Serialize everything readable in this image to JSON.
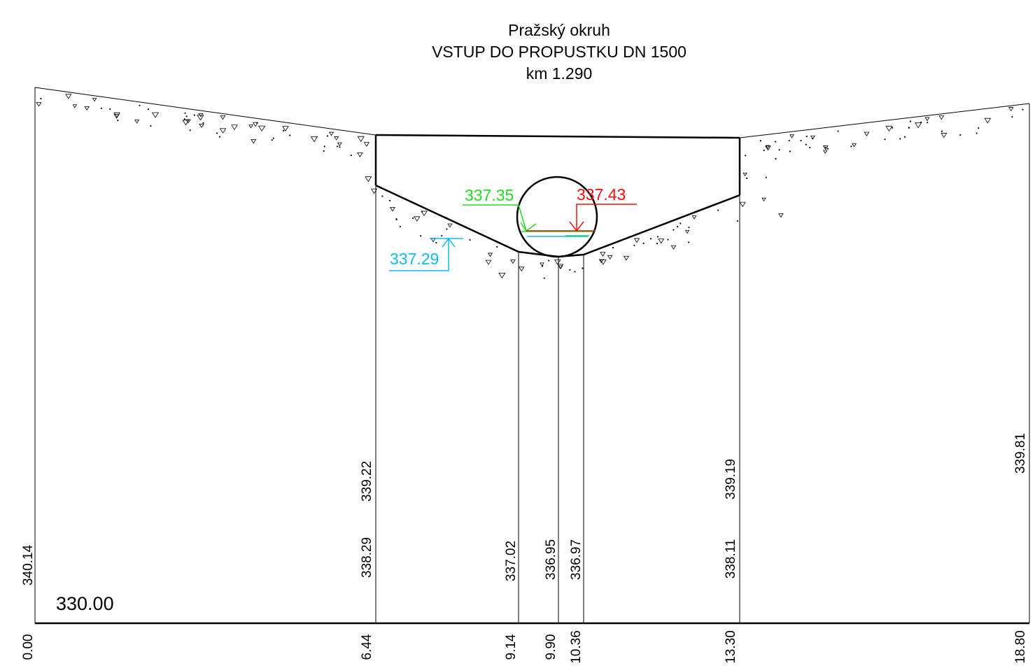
{
  "title": {
    "line1": "Pražský okruh",
    "line2": "VSTUP DO PROPUSTKU DN 1500",
    "line3": "km 1.290"
  },
  "datum_label": "330.00",
  "colors": {
    "line": "#000000",
    "green": "#22dd22",
    "red": "#ee1111",
    "blue": "#11bbee"
  },
  "water_levels": {
    "green": "337.35",
    "red": "337.43",
    "blue": "337.29"
  },
  "stations": [
    {
      "distance": "0.00",
      "elev_upper": "",
      "elev_lower": "340.14"
    },
    {
      "distance": "6.44",
      "elev_upper": "339.22",
      "elev_lower": "338.29"
    },
    {
      "distance": "9.14",
      "elev_upper": "",
      "elev_lower": "337.02"
    },
    {
      "distance": "9.90",
      "elev_upper": "",
      "elev_lower": "336.95"
    },
    {
      "distance": "10.36",
      "elev_upper": "",
      "elev_lower": "336.97"
    },
    {
      "distance": "13.30",
      "elev_upper": "339.19",
      "elev_lower": "338.11"
    },
    {
      "distance": "18.80",
      "elev_upper": "339.81",
      "elev_lower": ""
    }
  ]
}
